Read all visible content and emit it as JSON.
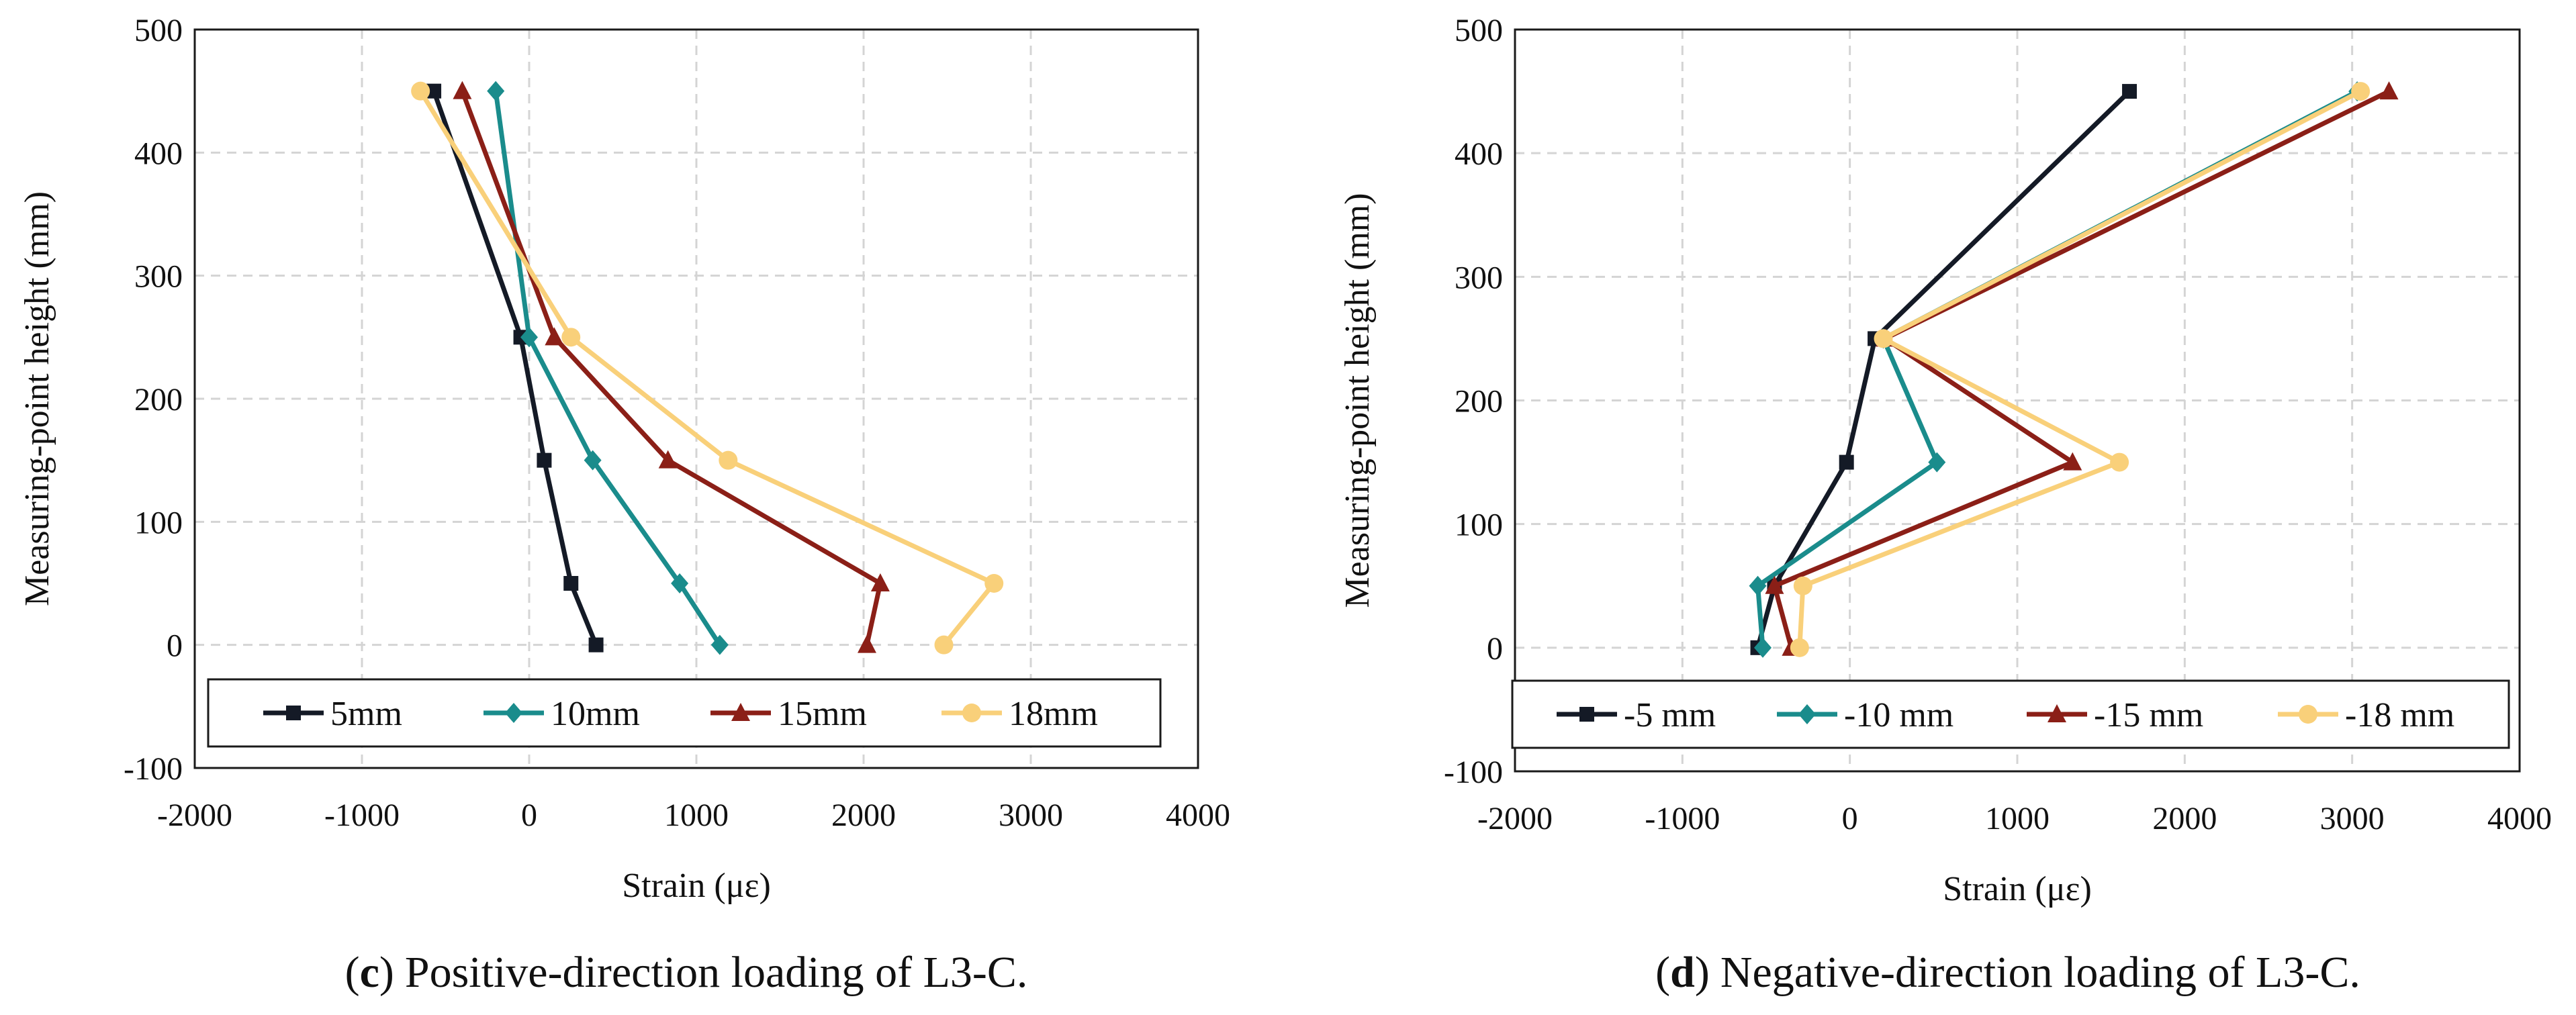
{
  "chart_data": [
    {
      "type": "line",
      "title": "",
      "caption": {
        "letter": "c",
        "text": "Positive-direction loading of L3-C.",
        "open": "(",
        "close": ")"
      },
      "xlabel": "Strain (με)",
      "ylabel": "Measuring-point height (mm)",
      "xlim": [
        -2000,
        4000
      ],
      "ylim": [
        -100,
        500
      ],
      "xticks": [
        "-2000",
        "-1000",
        "0",
        "1000",
        "2000",
        "3000",
        "4000"
      ],
      "yticks": [
        "-100",
        "0",
        "100",
        "200",
        "300",
        "400",
        "500"
      ],
      "grid": true,
      "legend_position": "bottom",
      "y": [
        450,
        250,
        150,
        50,
        0
      ],
      "series": [
        {
          "name": "5mm",
          "color": "#141a26",
          "marker": "square",
          "x": [
            -570,
            -50,
            90,
            250,
            400
          ]
        },
        {
          "name": "10mm",
          "color": "#1a8c8c",
          "marker": "diamond",
          "x": [
            -200,
            0,
            380,
            900,
            1140
          ]
        },
        {
          "name": "15mm",
          "color": "#8b1f17",
          "marker": "triangle",
          "x": [
            -400,
            150,
            830,
            2100,
            2020
          ]
        },
        {
          "name": "18mm",
          "color": "#f9d07a",
          "marker": "circle",
          "x": [
            -650,
            250,
            1190,
            2780,
            2480
          ]
        }
      ]
    },
    {
      "type": "line",
      "title": "",
      "caption": {
        "letter": "d",
        "text": "Negative-direction loading of L3-C.",
        "open": "(",
        "close": ")"
      },
      "xlabel": "Strain (με)",
      "ylabel": "Measuring-point height (mm)",
      "xlim": [
        -2000,
        4000
      ],
      "ylim": [
        -100,
        500
      ],
      "xticks": [
        "-2000",
        "-1000",
        "0",
        "1000",
        "2000",
        "3000",
        "4000"
      ],
      "yticks": [
        "-100",
        "0",
        "100",
        "200",
        "300",
        "400",
        "500"
      ],
      "grid": true,
      "legend_position": "bottom",
      "y": [
        450,
        250,
        150,
        50,
        0
      ],
      "series": [
        {
          "name": "-5 mm",
          "color": "#141a26",
          "marker": "square",
          "x": [
            1670,
            150,
            -20,
            -450,
            -550
          ]
        },
        {
          "name": "-10 mm",
          "color": "#1a8c8c",
          "marker": "diamond",
          "x": [
            3030,
            200,
            520,
            -550,
            -520
          ]
        },
        {
          "name": "-15 mm",
          "color": "#8b1f17",
          "marker": "triangle",
          "x": [
            3220,
            210,
            1330,
            -450,
            -350
          ]
        },
        {
          "name": "-18 mm",
          "color": "#f9d07a",
          "marker": "circle",
          "x": [
            3050,
            200,
            1610,
            -280,
            -300
          ]
        }
      ]
    }
  ]
}
